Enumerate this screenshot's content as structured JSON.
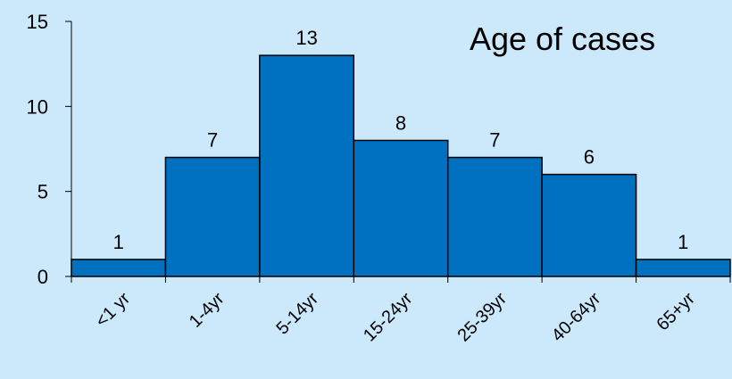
{
  "chart_data": {
    "type": "bar",
    "title": "Age of cases",
    "categories": [
      "<1 yr",
      "1-4yr",
      "5-14yr",
      "15-24yr",
      "25-39yr",
      "40-64yr",
      "65+yr"
    ],
    "values": [
      1,
      7,
      13,
      8,
      7,
      6,
      1
    ],
    "data_labels": [
      "1",
      "7",
      "13",
      "8",
      "7",
      "6",
      "1"
    ],
    "ylim": [
      0,
      15
    ],
    "yticks": [
      0,
      5,
      10,
      15
    ],
    "ytick_labels": [
      "0",
      "5",
      "10",
      "15"
    ],
    "xlabel": "",
    "ylabel": "",
    "grid": false,
    "bar_color": "#0070c0",
    "background_color": "#cce8fb"
  }
}
